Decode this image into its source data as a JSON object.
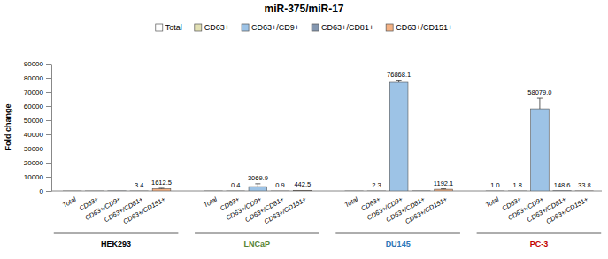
{
  "chart_data": {
    "type": "bar",
    "title": "miR-375/miR-17",
    "y_label": "Fold change",
    "categories": [
      "HEK293",
      "LNCaP",
      "DU145",
      "PC-3"
    ],
    "category_colors": [
      "#000000",
      "#548235",
      "#2e75b6",
      "#c00000"
    ],
    "series": [
      {
        "name": "Total",
        "color": "#ffffff",
        "values": [
          1,
          1,
          1,
          1.0
        ],
        "errors": [
          null,
          null,
          null,
          null
        ],
        "value_labels": [
          null,
          null,
          null,
          "1.0"
        ]
      },
      {
        "name": "CD63+",
        "color": "#e2e0b4",
        "values": [
          1,
          0.4,
          2.3,
          1.8
        ],
        "errors": [
          null,
          null,
          null,
          null
        ],
        "value_labels": [
          null,
          "0.4",
          "2.3",
          "1.8"
        ]
      },
      {
        "name": "CD63+/CD9+",
        "color": "#9dc3e6",
        "values": [
          50,
          3069.9,
          76868.1,
          58079.0
        ],
        "errors": [
          null,
          2000,
          1000,
          7500
        ],
        "value_labels": [
          null,
          "3069.9",
          "76868.1",
          "58079.0"
        ]
      },
      {
        "name": "CD63+/CD81+",
        "color": "#8497b0",
        "values": [
          3.4,
          0.9,
          50,
          148.6
        ],
        "errors": [
          null,
          null,
          null,
          null
        ],
        "value_labels": [
          "3.4",
          "0.9",
          null,
          "148.6"
        ]
      },
      {
        "name": "CD63+/CD151+",
        "color": "#f4b183",
        "values": [
          1612.5,
          442.5,
          1192.1,
          33.8
        ],
        "errors": [
          300,
          null,
          300,
          null
        ],
        "value_labels": [
          "1612.5",
          "442.5",
          "1192.1",
          "33.8"
        ]
      }
    ],
    "ylim": [
      0,
      90000
    ],
    "yticks": [
      0,
      10000,
      20000,
      30000,
      40000,
      50000,
      60000,
      70000,
      80000,
      90000
    ],
    "grid": false,
    "legend": "top",
    "data_labels": true
  }
}
